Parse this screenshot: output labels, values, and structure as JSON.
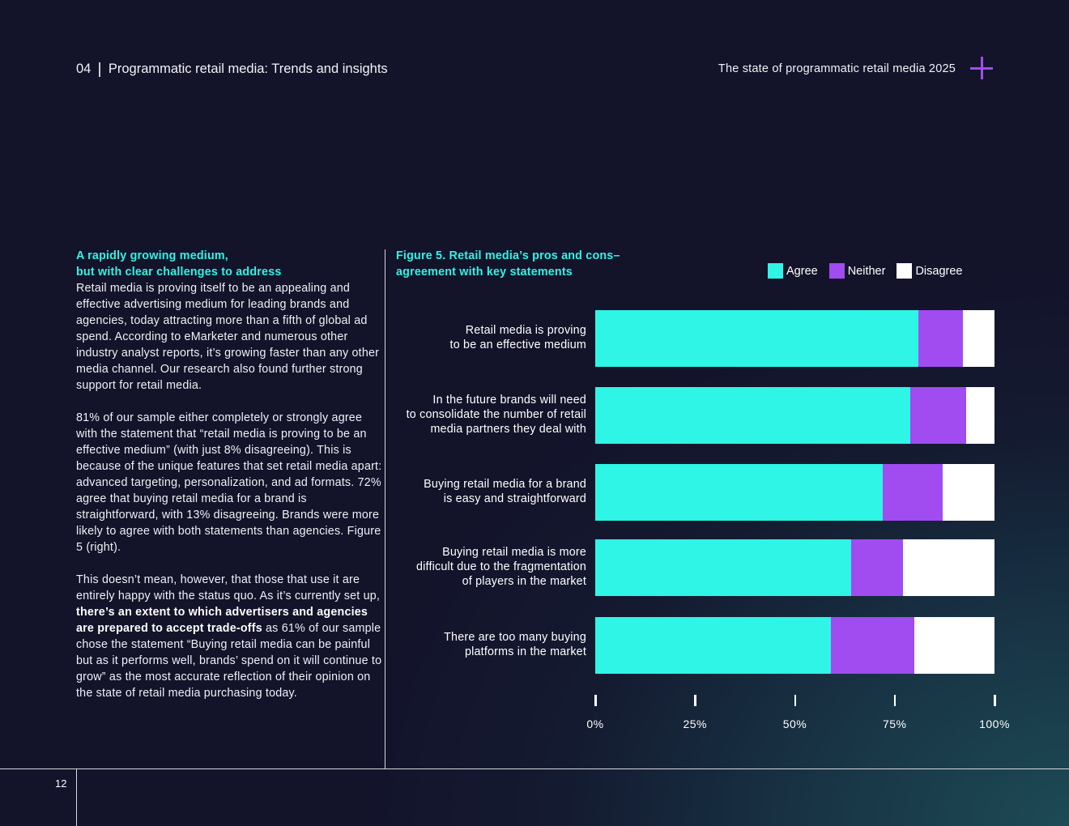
{
  "header": {
    "section": "04",
    "title": "Programmatic retail media: Trends and insights",
    "report": "The state of programmatic retail media 2025"
  },
  "left": {
    "heading": [
      "A rapidly growing medium,",
      "but with clear challenges to address"
    ],
    "p1": "Retail media is proving itself to be an appealing and effective advertising medium for leading brands and agencies, today attracting more than a fifth of global ad spend. According to eMarketer and numerous other industry analyst reports, it’s growing faster than any other media channel. Our research also found further strong support for retail media.",
    "p2": "81% of our sample either completely or strongly agree with the statement that “retail media is proving to be an effective medium” (with just 8% disagreeing). This is because of the unique features that set retail media apart: advanced targeting, personalization, and ad formats. 72% agree that buying retail media for a brand is straightforward, with 13% disagreeing. Brands were more likely to agree with both statements than agencies. Figure 5 (right).",
    "p3a": "This doesn’t mean, however, that those that use it are entirely happy with the status quo. As it’s currently set up, ",
    "p3b": "there’s an extent to which advertisers and agencies are prepared to accept trade-offs",
    "p3c": " as 61% of our sample chose the statement “Buying retail media can be painful but as it performs well, brands’ spend on it will continue to grow” as the most accurate reflection of their opinion on the state of retail media purchasing today."
  },
  "page_number": "12",
  "chart_data": {
    "type": "bar",
    "orientation": "horizontal-stacked",
    "title": [
      "Figure 5. Retail media’s pros and cons–",
      "agreement with key statements"
    ],
    "categories": [
      [
        "Retail media is proving",
        "to be an effective medium"
      ],
      [
        "In the future brands will need",
        "to consolidate the number of retail",
        "media partners they deal with"
      ],
      [
        "Buying retail media for a brand",
        "is easy and straightforward"
      ],
      [
        "Buying retail media is more",
        "difficult due to the fragmentation",
        "of players in the market"
      ],
      [
        "There are too many buying",
        "platforms in the market"
      ]
    ],
    "series": [
      {
        "name": "Agree",
        "color": "#2ef5e6",
        "values": [
          81,
          79,
          72,
          64,
          59
        ]
      },
      {
        "name": "Neither",
        "color": "#a04cf0",
        "values": [
          11,
          14,
          15,
          13,
          21
        ]
      },
      {
        "name": "Disagree",
        "color": "#ffffff",
        "values": [
          8,
          7,
          13,
          23,
          20
        ]
      }
    ],
    "xticks": [
      "0%",
      "25%",
      "50%",
      "75%",
      "100%"
    ],
    "xlim": [
      0,
      100
    ],
    "legend": "top-right"
  }
}
